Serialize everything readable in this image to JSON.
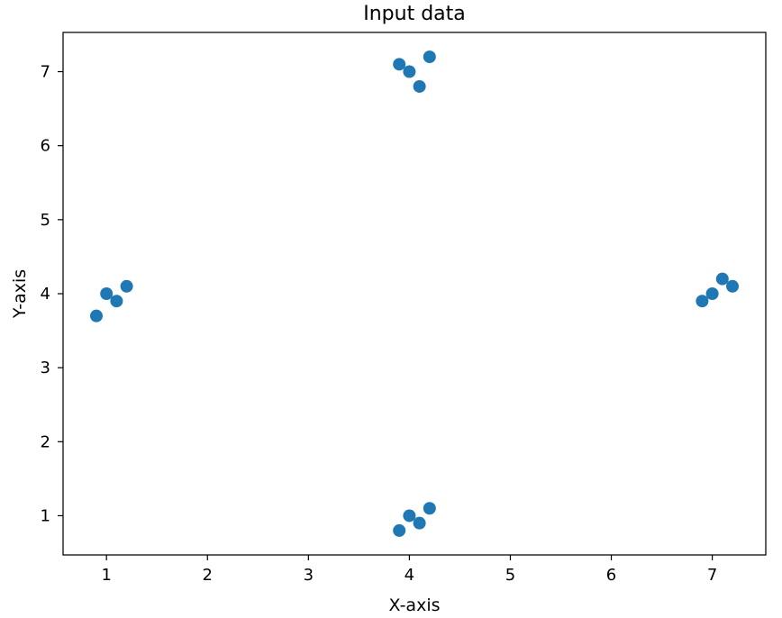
{
  "chart_data": {
    "type": "scatter",
    "title": "Input data",
    "xlabel": "X-axis",
    "ylabel": "Y-axis",
    "xlim": [
      0.57,
      7.53
    ],
    "ylim": [
      0.47,
      7.53
    ],
    "xticks": [
      1,
      2,
      3,
      4,
      5,
      6,
      7
    ],
    "yticks": [
      1,
      2,
      3,
      4,
      5,
      6,
      7
    ],
    "grid": false,
    "legend": "none",
    "marker_color": "#1f77b4",
    "points": [
      {
        "x": 1.0,
        "y": 4.0
      },
      {
        "x": 1.1,
        "y": 3.9
      },
      {
        "x": 0.9,
        "y": 3.7
      },
      {
        "x": 1.2,
        "y": 4.1
      },
      {
        "x": 4.0,
        "y": 7.0
      },
      {
        "x": 4.1,
        "y": 6.8
      },
      {
        "x": 3.9,
        "y": 7.1
      },
      {
        "x": 4.2,
        "y": 7.2
      },
      {
        "x": 7.0,
        "y": 4.0
      },
      {
        "x": 7.1,
        "y": 4.2
      },
      {
        "x": 6.9,
        "y": 3.9
      },
      {
        "x": 7.2,
        "y": 4.1
      },
      {
        "x": 4.0,
        "y": 1.0
      },
      {
        "x": 4.1,
        "y": 0.9
      },
      {
        "x": 3.9,
        "y": 0.8
      },
      {
        "x": 4.2,
        "y": 1.1
      }
    ]
  }
}
